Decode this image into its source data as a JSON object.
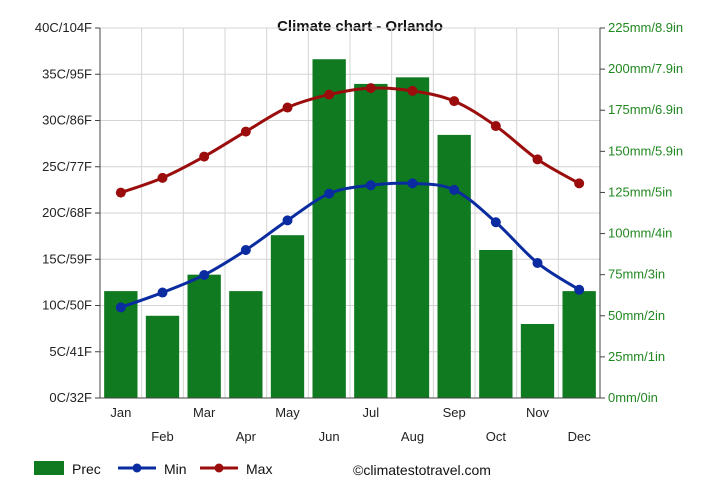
{
  "chart_data": {
    "type": "bar",
    "title": "Climate chart - Orlando",
    "categories": [
      "Jan",
      "Feb",
      "Mar",
      "Apr",
      "May",
      "Jun",
      "Jul",
      "Aug",
      "Sep",
      "Oct",
      "Nov",
      "Dec"
    ],
    "precipitation": {
      "name": "Prec",
      "unit": "mm",
      "values": [
        65,
        50,
        75,
        65,
        99,
        206,
        191,
        195,
        160,
        90,
        45,
        65
      ],
      "color": "#0f7a1f"
    },
    "series": [
      {
        "name": "Min",
        "values": [
          9.8,
          11.4,
          13.3,
          16.0,
          19.2,
          22.1,
          23.0,
          23.2,
          22.5,
          19.0,
          14.6,
          11.7
        ],
        "color": "#0a2ca0"
      },
      {
        "name": "Max",
        "values": [
          22.2,
          23.8,
          26.1,
          28.8,
          31.4,
          32.8,
          33.5,
          33.2,
          32.1,
          29.4,
          25.8,
          23.2
        ],
        "color": "#9b0d0d"
      }
    ],
    "left_axis": {
      "ylim": [
        0,
        40
      ],
      "ticks": [
        "0C/32F",
        "5C/41F",
        "10C/50F",
        "15C/59F",
        "20C/68F",
        "25C/77F",
        "30C/86F",
        "35C/95F",
        "40C/104F"
      ]
    },
    "right_axis": {
      "ylim": [
        0,
        225
      ],
      "ticks": [
        "0mm/0in",
        "25mm/1in",
        "50mm/2in",
        "75mm/3in",
        "100mm/4in",
        "125mm/5in",
        "150mm/5.9in",
        "175mm/6.9in",
        "200mm/7.9in",
        "225mm/8.9in"
      ]
    },
    "grid": true,
    "legend": {
      "placement": "bottom-left",
      "items": [
        {
          "label": "Prec",
          "kind": "bar",
          "color": "#0f7a1f"
        },
        {
          "label": "Min",
          "kind": "line",
          "color": "#0a2ca0"
        },
        {
          "label": "Max",
          "kind": "line",
          "color": "#9b0d0d"
        }
      ]
    },
    "credit": "©climatestotravel.com"
  }
}
